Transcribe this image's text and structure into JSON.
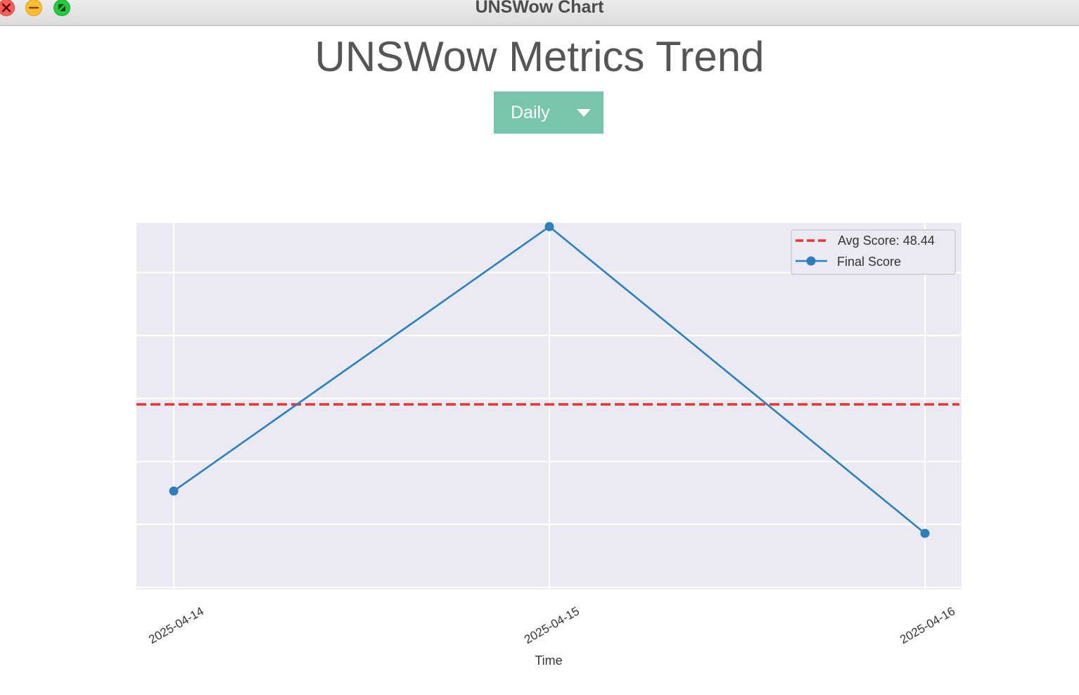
{
  "window": {
    "title": "UNSWow Chart",
    "buttons": [
      "close-icon",
      "minimize-icon",
      "fullscreen-icon"
    ]
  },
  "page": {
    "title": "UNSWow Metrics Trend"
  },
  "controls": {
    "period_selected": "Daily",
    "dropdown_icon": "caret-down-icon",
    "accent_color": "#79c4ad"
  },
  "chart_data": {
    "type": "line",
    "title": "",
    "xlabel": "Time",
    "ylabel": "",
    "x": [
      "2025-04-14",
      "2025-04-15",
      "2025-04-16"
    ],
    "x_tick_labels": [
      "2025-04-14",
      "2025-04-15",
      "2025-04-16"
    ],
    "y_tick_labels": [],
    "ylim": [
      0,
      100
    ],
    "grid": true,
    "legend_position": "top-right",
    "series": [
      {
        "name": "Final Score",
        "values": [
          25.5,
          95.5,
          14.3
        ],
        "color": "#2f7ebc",
        "marker": "circle",
        "style": "solid"
      }
    ],
    "reference_lines": [
      {
        "name": "Avg Score: 48.44",
        "value": 48.44,
        "color": "#ee3333",
        "style": "dashed"
      }
    ],
    "legend_entries": [
      "Avg Score: 48.44",
      "Final Score"
    ]
  }
}
